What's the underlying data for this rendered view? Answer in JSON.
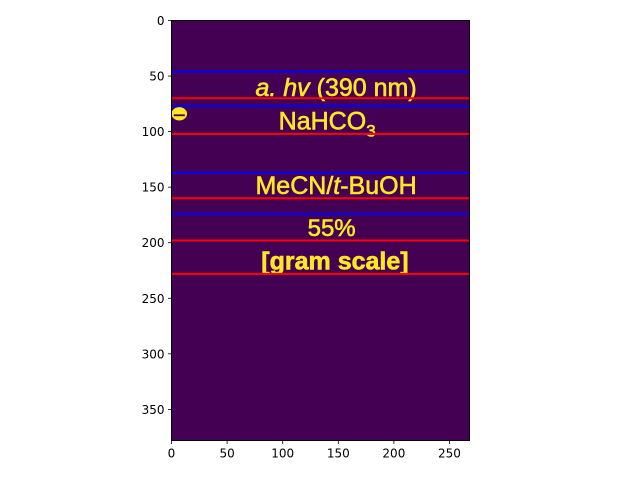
{
  "chart_data": {
    "type": "heatmap",
    "title": "",
    "xlabel": "",
    "ylabel": "",
    "xlim": [
      0,
      268
    ],
    "ylim": [
      378,
      0
    ],
    "y_inverted": true,
    "grid": false,
    "legend": "none",
    "x_ticks": [
      0,
      50,
      100,
      150,
      200,
      250
    ],
    "y_ticks": [
      0,
      50,
      100,
      150,
      200,
      250,
      300,
      350
    ],
    "x_tick_labels": [
      "0",
      "50",
      "100",
      "150",
      "200",
      "250"
    ],
    "y_tick_labels": [
      "0",
      "50",
      "100",
      "150",
      "200",
      "250",
      "300",
      "350"
    ],
    "background_color": "#440154",
    "text_color": "#fde725",
    "image_text": {
      "line1_italic": "a. hv",
      "line1_rest": " (390 nm)",
      "line2_main": "NaHCO",
      "line2_sub": "3",
      "line3_pre": "MeCN/",
      "line3_italic": "t",
      "line3_post": "-BuOH",
      "line4": "55%",
      "line5": "[gram scale]"
    },
    "hlines_blue": [
      46,
      77,
      137,
      174
    ],
    "hlines_red": [
      70,
      102,
      160,
      198,
      228
    ],
    "blue_color": "#0000ff",
    "red_color": "#ff0000"
  }
}
